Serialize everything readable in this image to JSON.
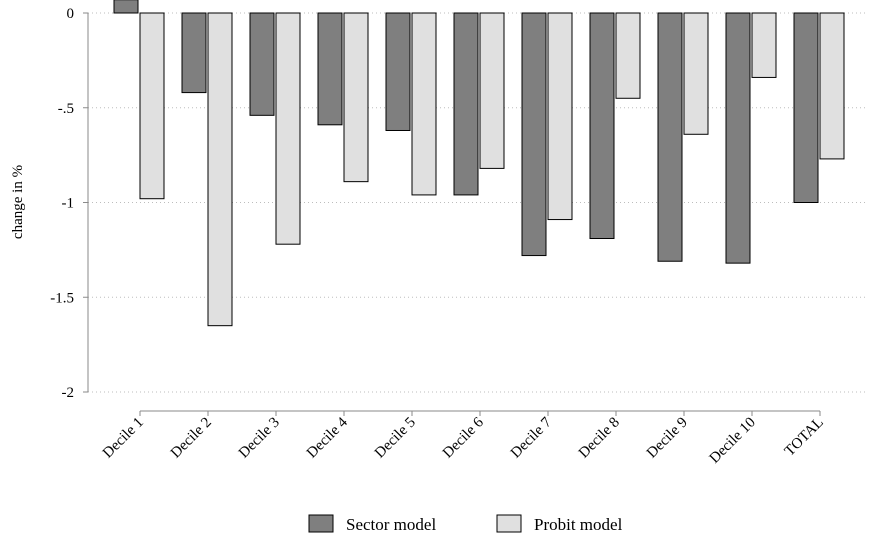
{
  "chart_data": {
    "type": "bar",
    "title": "",
    "xlabel": "",
    "ylabel": "change in %",
    "ylim": [
      -2,
      0
    ],
    "yticks": [
      0,
      -0.5,
      -1,
      -1.5,
      -2
    ],
    "ytick_labels": [
      "0",
      "-.5",
      "-1",
      "-1.5",
      "-2"
    ],
    "grid": true,
    "legend_position": "bottom",
    "categories": [
      "Decile 1",
      "Decile 2",
      "Decile 3",
      "Decile 4",
      "Decile 5",
      "Decile 6",
      "Decile 7",
      "Decile 8",
      "Decile 9",
      "Decile 10",
      "TOTAL"
    ],
    "series": [
      {
        "name": "Sector model",
        "color": "#7f7f7f",
        "values": [
          0.07,
          -0.42,
          -0.54,
          -0.59,
          -0.62,
          -0.96,
          -1.28,
          -1.19,
          -1.31,
          -1.32,
          -1.0
        ]
      },
      {
        "name": "Probit model",
        "color": "#e0e0e0",
        "values": [
          -0.98,
          -1.65,
          -1.22,
          -0.89,
          -0.96,
          -0.82,
          -1.09,
          -0.45,
          -0.64,
          -0.34,
          -0.77
        ]
      }
    ]
  }
}
